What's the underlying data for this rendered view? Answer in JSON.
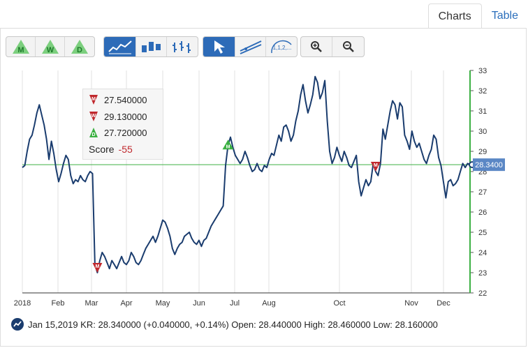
{
  "tabs": {
    "charts": "Charts",
    "table": "Table"
  },
  "toolbar": {
    "monthly_letter": "M",
    "weekly_letter": "W",
    "daily_letter": "D",
    "fib_label": "1,1,2,..."
  },
  "tooltip": {
    "monthly_value": "27.540000",
    "weekly_value": "29.130000",
    "daily_value": "27.720000",
    "score_label": "Score",
    "score_value": "-55"
  },
  "status": {
    "text": "Jan 15,2019 KR: 28.340000 (+0.040000, +0.14%) Open: 28.440000 High: 28.460000 Low: 28.160000"
  },
  "colors": {
    "line": "#1a3c6e",
    "ref_line": "#3cb043",
    "sell": "#c0282d",
    "buy": "#3cb043",
    "last_badge": "#5b87c5"
  },
  "chart_data": {
    "type": "line",
    "x_tick_labels": [
      "2018",
      "Feb",
      "Mar",
      "Apr",
      "May",
      "Jun",
      "Jul",
      "Aug",
      "Oct",
      "Nov",
      "Dec"
    ],
    "y_ticks": [
      22,
      23,
      24,
      25,
      26,
      27,
      28,
      29,
      30,
      31,
      32,
      33
    ],
    "ylim": [
      22,
      33
    ],
    "reference_value": 28.34,
    "last_value_label": "28.3400",
    "series": [
      {
        "values": [
          28.2,
          28.3,
          29.0,
          29.6,
          29.8,
          30.3,
          30.9,
          31.3,
          30.8,
          30.3,
          29.6,
          28.6,
          29.5,
          28.9,
          28.1,
          27.5,
          27.9,
          28.4,
          28.8,
          28.6,
          27.8,
          27.4,
          27.6,
          27.5,
          27.8,
          27.6,
          27.5,
          27.8,
          28.0,
          27.9,
          23.4,
          23.0,
          23.6,
          24.0,
          23.8,
          23.5,
          23.2,
          23.6,
          23.4,
          23.2,
          23.5,
          23.8,
          23.5,
          23.4,
          23.6,
          24.0,
          23.8,
          23.5,
          23.4,
          23.6,
          23.9,
          24.2,
          24.4,
          24.6,
          24.8,
          24.5,
          24.8,
          25.2,
          25.6,
          25.5,
          25.2,
          24.8,
          24.2,
          23.9,
          24.2,
          24.4,
          24.5,
          24.8,
          24.9,
          25.0,
          24.7,
          24.5,
          24.4,
          24.6,
          24.3,
          24.6,
          24.7,
          25.0,
          25.3,
          25.5,
          25.7,
          25.9,
          26.1,
          26.3,
          28.3,
          29.3,
          29.7,
          29.2,
          28.8,
          28.6,
          28.4,
          28.6,
          29.0,
          28.7,
          28.3,
          28.0,
          28.1,
          28.4,
          28.1,
          28.0,
          28.3,
          28.2,
          28.6,
          28.9,
          28.8,
          29.3,
          29.8,
          29.5,
          30.2,
          30.3,
          30.0,
          29.5,
          29.8,
          30.5,
          31.0,
          31.8,
          32.3,
          31.5,
          30.9,
          31.3,
          31.8,
          32.7,
          32.4,
          31.6,
          31.9,
          32.5,
          30.5,
          29.0,
          28.4,
          28.7,
          29.2,
          28.8,
          28.5,
          29.0,
          28.7,
          28.3,
          28.2,
          28.5,
          28.8,
          27.5,
          26.8,
          27.2,
          27.6,
          27.3,
          27.5,
          28.4,
          28.0,
          27.8,
          28.4,
          30.1,
          29.6,
          30.3,
          31.0,
          31.5,
          31.3,
          30.6,
          31.4,
          31.2,
          29.8,
          29.5,
          29.1,
          30.0,
          29.5,
          29.2,
          29.4,
          29.0,
          28.6,
          28.4,
          28.8,
          29.1,
          29.8,
          29.6,
          28.7,
          28.3,
          27.5,
          26.7,
          27.5,
          27.6,
          27.3,
          27.4,
          27.6,
          28.0,
          28.4,
          28.2,
          28.4,
          28.34
        ]
      }
    ],
    "markers": [
      {
        "kind": "sell",
        "letter": "M",
        "index": 31
      },
      {
        "kind": "buy",
        "letter": "M",
        "index": 85
      },
      {
        "kind": "sell",
        "letter": "M",
        "index": 146
      }
    ]
  }
}
